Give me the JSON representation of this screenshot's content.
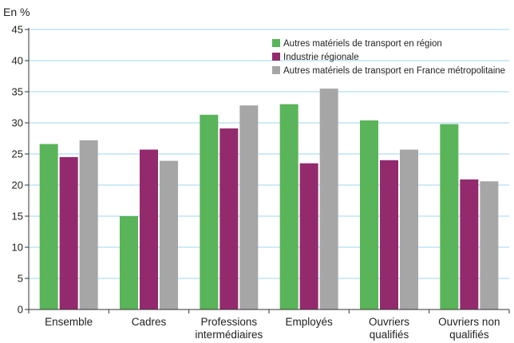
{
  "chart_data": {
    "type": "bar",
    "y_unit_label": "En %",
    "ylim": [
      0,
      45
    ],
    "y_ticks": [
      0,
      5,
      10,
      15,
      20,
      25,
      30,
      35,
      40,
      45
    ],
    "grid": true,
    "legend_position": "top-right",
    "categories": [
      [
        "Ensemble"
      ],
      [
        "Cadres"
      ],
      [
        "Professions",
        "intermédiaires"
      ],
      [
        "Employés"
      ],
      [
        "Ouvriers",
        "qualifiés"
      ],
      [
        "Ouvriers non",
        "qualifiés"
      ]
    ],
    "series": [
      {
        "name": "Autres matériels de transport en région",
        "color": "#5ab45a",
        "values": [
          26.6,
          15.0,
          31.3,
          33.0,
          30.4,
          29.8
        ]
      },
      {
        "name": "Industrie régionale",
        "color": "#932a6e",
        "values": [
          24.5,
          25.7,
          29.1,
          23.5,
          24.0,
          20.9
        ]
      },
      {
        "name": "Autres matériels de transport en France métropolitaine",
        "color": "#a6a6a6",
        "values": [
          27.2,
          23.9,
          32.8,
          35.5,
          25.7,
          20.6
        ]
      }
    ]
  }
}
